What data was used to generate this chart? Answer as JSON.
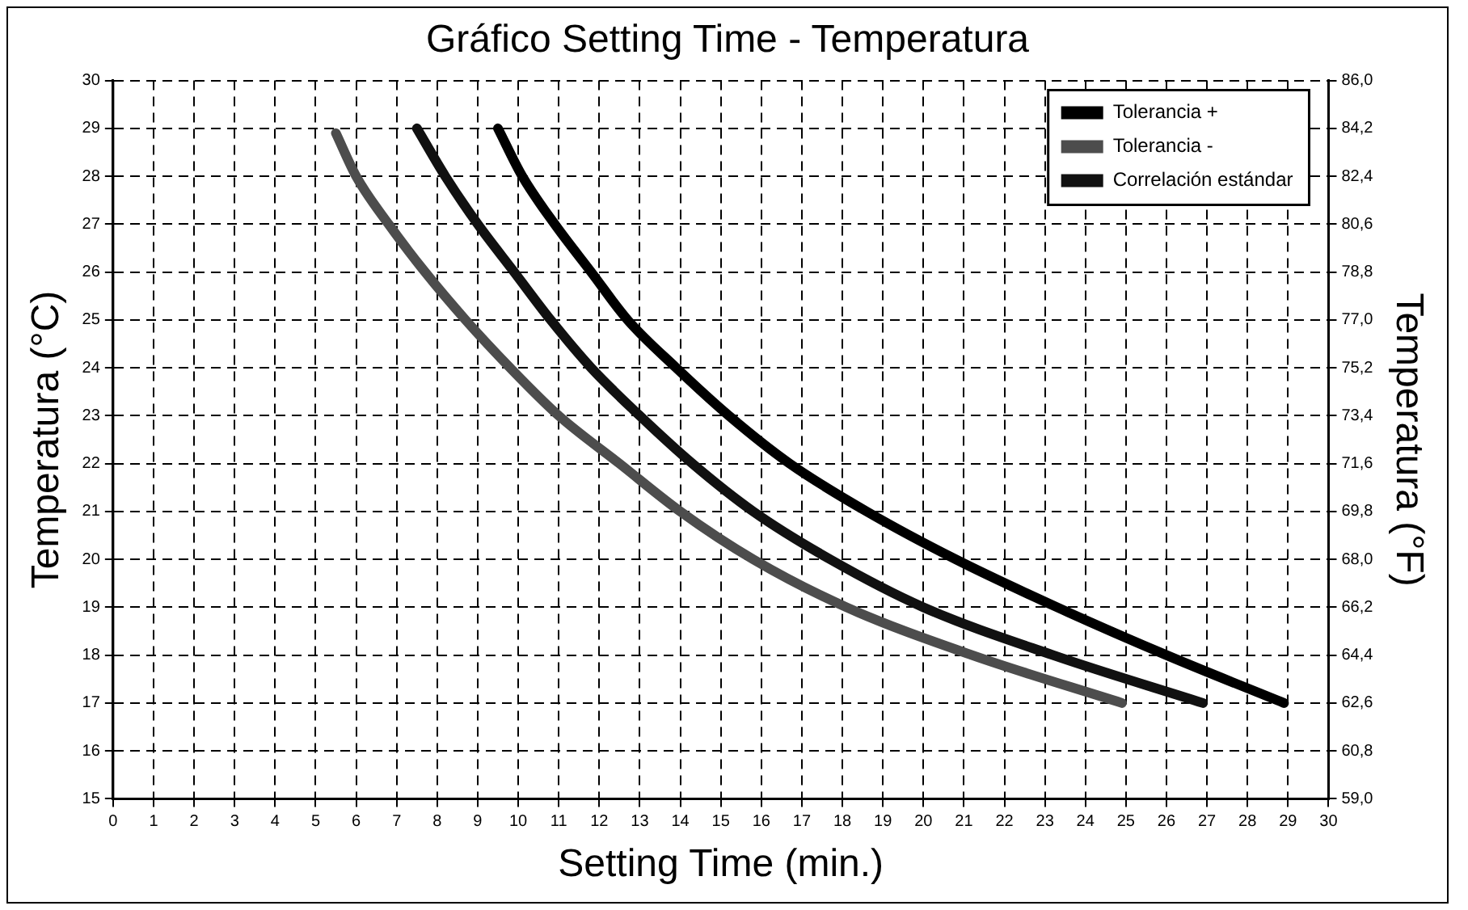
{
  "chart_data": {
    "type": "line",
    "title": "Gráfico Setting Time - Temperatura",
    "xlabel": "Setting Time (min.)",
    "ylabel": "Temperatura (°C)",
    "y2label": "Temperatura (°F)",
    "xlim": [
      0,
      30
    ],
    "xticks": [
      0,
      1,
      2,
      3,
      4,
      5,
      6,
      7,
      8,
      9,
      10,
      11,
      12,
      13,
      14,
      15,
      16,
      17,
      18,
      19,
      20,
      21,
      22,
      23,
      24,
      25,
      26,
      27,
      28,
      29,
      30
    ],
    "ylim": [
      15,
      30
    ],
    "yticks": [
      15,
      16,
      17,
      18,
      19,
      20,
      21,
      22,
      23,
      24,
      25,
      26,
      27,
      28,
      29,
      30
    ],
    "y2lim": [
      59,
      86
    ],
    "y2ticks": [
      {
        "value": 59,
        "label": "59,0"
      },
      {
        "value": 60.8,
        "label": "60,8"
      },
      {
        "value": 62.6,
        "label": "62,6"
      },
      {
        "value": 64.4,
        "label": "64,4"
      },
      {
        "value": 66.2,
        "label": "66,2"
      },
      {
        "value": 68,
        "label": "68,0"
      },
      {
        "value": 69.8,
        "label": "69,8"
      },
      {
        "value": 71.6,
        "label": "71,6"
      },
      {
        "value": 73.4,
        "label": "73,4"
      },
      {
        "value": 75.2,
        "label": "75,2"
      },
      {
        "value": 77,
        "label": "77,0"
      },
      {
        "value": 78.8,
        "label": "78,8"
      },
      {
        "value": 80.6,
        "label": "80,6"
      },
      {
        "value": 82.4,
        "label": "82,4"
      },
      {
        "value": 84.2,
        "label": "84,2"
      },
      {
        "value": 86,
        "label": "86,0"
      }
    ],
    "grid": true,
    "legend": "top right",
    "marker": "none",
    "series": [
      {
        "name": "Tolerancia +",
        "color": "#000000",
        "x": [
          9.5,
          10.1,
          10.9,
          11.8,
          12.7,
          13.9,
          15.2,
          16.7,
          18.6,
          20.8,
          23.3,
          26.0,
          28.9
        ],
        "values": [
          29,
          28,
          27,
          26,
          25,
          24,
          23,
          22,
          21,
          20,
          19,
          18,
          17
        ]
      },
      {
        "name": "Tolerancia -",
        "color": "#4d4d4d",
        "x": [
          5.5,
          6.0,
          6.8,
          7.7,
          8.7,
          9.8,
          11.0,
          12.5,
          14.0,
          15.8,
          18.1,
          21.2,
          24.9
        ],
        "values": [
          28.9,
          28,
          27,
          26,
          25,
          24,
          23,
          22,
          21,
          20,
          19,
          18,
          17
        ]
      },
      {
        "name": "Correlación estándar",
        "color": "#111111",
        "x": [
          7.5,
          8.2,
          9.0,
          9.9,
          10.8,
          11.8,
          13.0,
          14.3,
          15.8,
          17.7,
          20.0,
          23.2,
          26.9
        ],
        "values": [
          29,
          28,
          27,
          26,
          25,
          24,
          23,
          22,
          21,
          20,
          19,
          18,
          17
        ]
      }
    ]
  }
}
